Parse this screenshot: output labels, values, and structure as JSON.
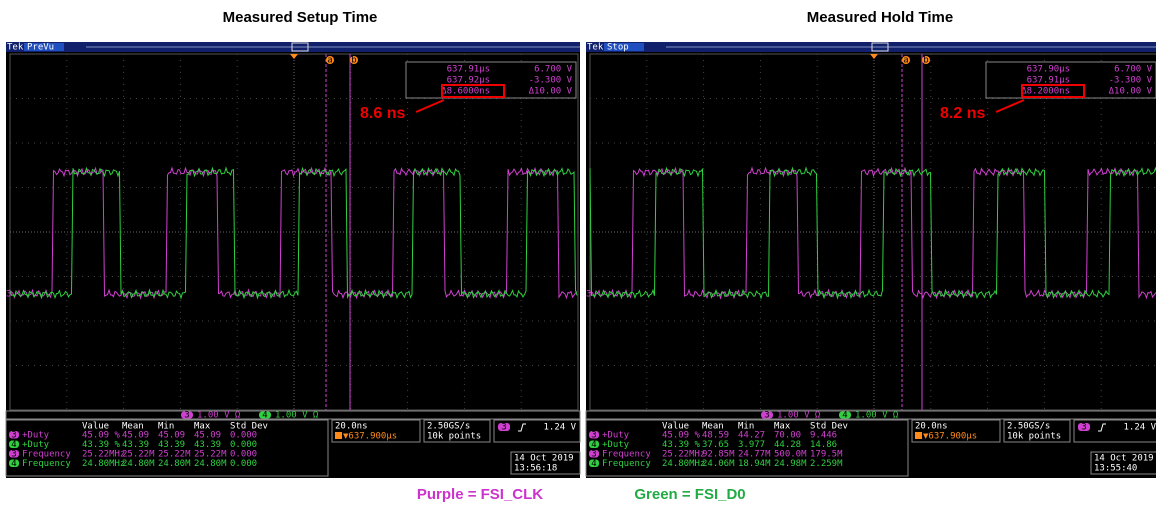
{
  "panels": [
    {
      "title": "Measured Setup Time",
      "brand": "Tek",
      "status": "PreVu",
      "cursor_a": "a",
      "cursor_b": "b",
      "readout": [
        [
          "637.91µs",
          "6.700 V"
        ],
        [
          "637.92µs",
          "-3.300 V"
        ],
        [
          "Δ8.6000ns",
          "Δ10.00 V"
        ]
      ],
      "annotation": "8.6 ns",
      "channels": [
        {
          "num": "3",
          "scale": "1.00 V Ω"
        },
        {
          "num": "4",
          "scale": "1.00 V Ω"
        }
      ],
      "table": {
        "header": [
          "Value",
          "Mean",
          "Min",
          "Max",
          "Std Dev"
        ],
        "rows": [
          [
            "3",
            "+Duty",
            "45.09 %",
            "45.09",
            "45.09",
            "45.09",
            "0.000"
          ],
          [
            "4",
            "+Duty",
            "43.39 %",
            "43.39",
            "43.39",
            "43.39",
            "0.000"
          ],
          [
            "3",
            "Frequency",
            "25.22MHz",
            "25.22M",
            "25.22M",
            "25.22M",
            "0.000"
          ],
          [
            "4",
            "Frequency",
            "24.80MHz",
            "24.80M",
            "24.80M",
            "24.80M",
            "0.000"
          ]
        ]
      },
      "timebase": "20.0ns",
      "trigger_pos": "▼637.900µs",
      "sample_rate": "2.50GS/s",
      "record": "10k points",
      "trigger_ch": "3",
      "trigger_level": "1.24 V",
      "date": "14 Oct 2019",
      "time": "13:56:18"
    },
    {
      "title": "Measured Hold Time",
      "brand": "Tek",
      "status": "Stop",
      "cursor_a": "a",
      "cursor_b": "b",
      "readout": [
        [
          "637.90µs",
          "6.700 V"
        ],
        [
          "637.91µs",
          "-3.300 V"
        ],
        [
          "Δ8.2000ns",
          "Δ10.00 V"
        ]
      ],
      "annotation": "8.2 ns",
      "channels": [
        {
          "num": "3",
          "scale": "1.00 V Ω"
        },
        {
          "num": "4",
          "scale": "1.00 V Ω"
        }
      ],
      "table": {
        "header": [
          "Value",
          "Mean",
          "Min",
          "Max",
          "Std Dev"
        ],
        "rows": [
          [
            "3",
            "+Duty",
            "45.09 %",
            "48.59",
            "44.27",
            "70.00",
            "9.446"
          ],
          [
            "4",
            "+Duty",
            "43.39 %",
            "37.65",
            "3.977",
            "44.28",
            "14.86"
          ],
          [
            "3",
            "Frequency",
            "25.22MHz",
            "92.85M",
            "24.77M",
            "500.0M",
            "179.5M"
          ],
          [
            "4",
            "Frequency",
            "24.80MHz",
            "24.06M",
            "18.94M",
            "24.98M",
            "2.259M"
          ]
        ]
      },
      "timebase": "20.0ns",
      "trigger_pos": "▼637.900µs",
      "sample_rate": "2.50GS/s",
      "record": "10k points",
      "trigger_ch": "3",
      "trigger_level": "1.24 V",
      "date": "14 Oct 2019",
      "time": "13:55:40"
    }
  ],
  "legend": [
    {
      "text": "Purple = FSI_CLK",
      "color": "#cc33cc"
    },
    {
      "text": "Green = FSI_D0",
      "color": "#22aa44"
    }
  ]
}
